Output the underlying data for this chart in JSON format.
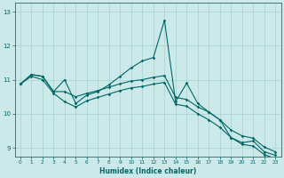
{
  "xlabel": "Humidex (Indice chaleur)",
  "bg_color": "#cce9e9",
  "grid_color": "#a8d0d0",
  "line_color": "#006666",
  "spine_color": "#336666",
  "xlim": [
    -0.5,
    23.5
  ],
  "ylim": [
    8.75,
    13.25
  ],
  "xticks": [
    0,
    1,
    2,
    3,
    4,
    5,
    6,
    7,
    8,
    9,
    10,
    11,
    12,
    13,
    14,
    15,
    16,
    17,
    18,
    19,
    20,
    21,
    22,
    23
  ],
  "yticks": [
    9,
    10,
    11,
    12,
    13
  ],
  "main_x": [
    0,
    1,
    2,
    3,
    4,
    5,
    6,
    7,
    8,
    9,
    10,
    11,
    12,
    13,
    14,
    15,
    16,
    17,
    18,
    19,
    20,
    21,
    22,
    23
  ],
  "main_y": [
    10.87,
    11.15,
    11.1,
    10.65,
    11.0,
    10.3,
    10.55,
    10.65,
    10.85,
    11.1,
    11.35,
    11.55,
    11.65,
    12.75,
    10.35,
    10.9,
    10.3,
    10.05,
    9.82,
    9.3,
    9.15,
    9.2,
    8.88,
    8.78
  ],
  "trend1_x": [
    0,
    1,
    2,
    3,
    4,
    5,
    6,
    7,
    8,
    9,
    10,
    11,
    12,
    13,
    14,
    15,
    16,
    17,
    18,
    19,
    20,
    21,
    22,
    23
  ],
  "trend1_y": [
    10.87,
    11.15,
    11.1,
    10.65,
    10.65,
    10.5,
    10.6,
    10.68,
    10.78,
    10.88,
    10.96,
    11.0,
    11.07,
    11.12,
    10.48,
    10.42,
    10.2,
    10.05,
    9.82,
    9.52,
    9.35,
    9.28,
    9.02,
    8.88
  ],
  "trend2_x": [
    0,
    1,
    2,
    3,
    4,
    5,
    6,
    7,
    8,
    9,
    10,
    11,
    12,
    13,
    14,
    15,
    16,
    17,
    18,
    19,
    20,
    21,
    22,
    23
  ],
  "trend2_y": [
    10.87,
    11.1,
    11.0,
    10.6,
    10.35,
    10.2,
    10.38,
    10.48,
    10.58,
    10.68,
    10.76,
    10.8,
    10.87,
    10.92,
    10.28,
    10.22,
    10.0,
    9.82,
    9.6,
    9.3,
    9.1,
    9.05,
    8.8,
    8.68
  ],
  "lw": 0.8,
  "ms": 1.8
}
